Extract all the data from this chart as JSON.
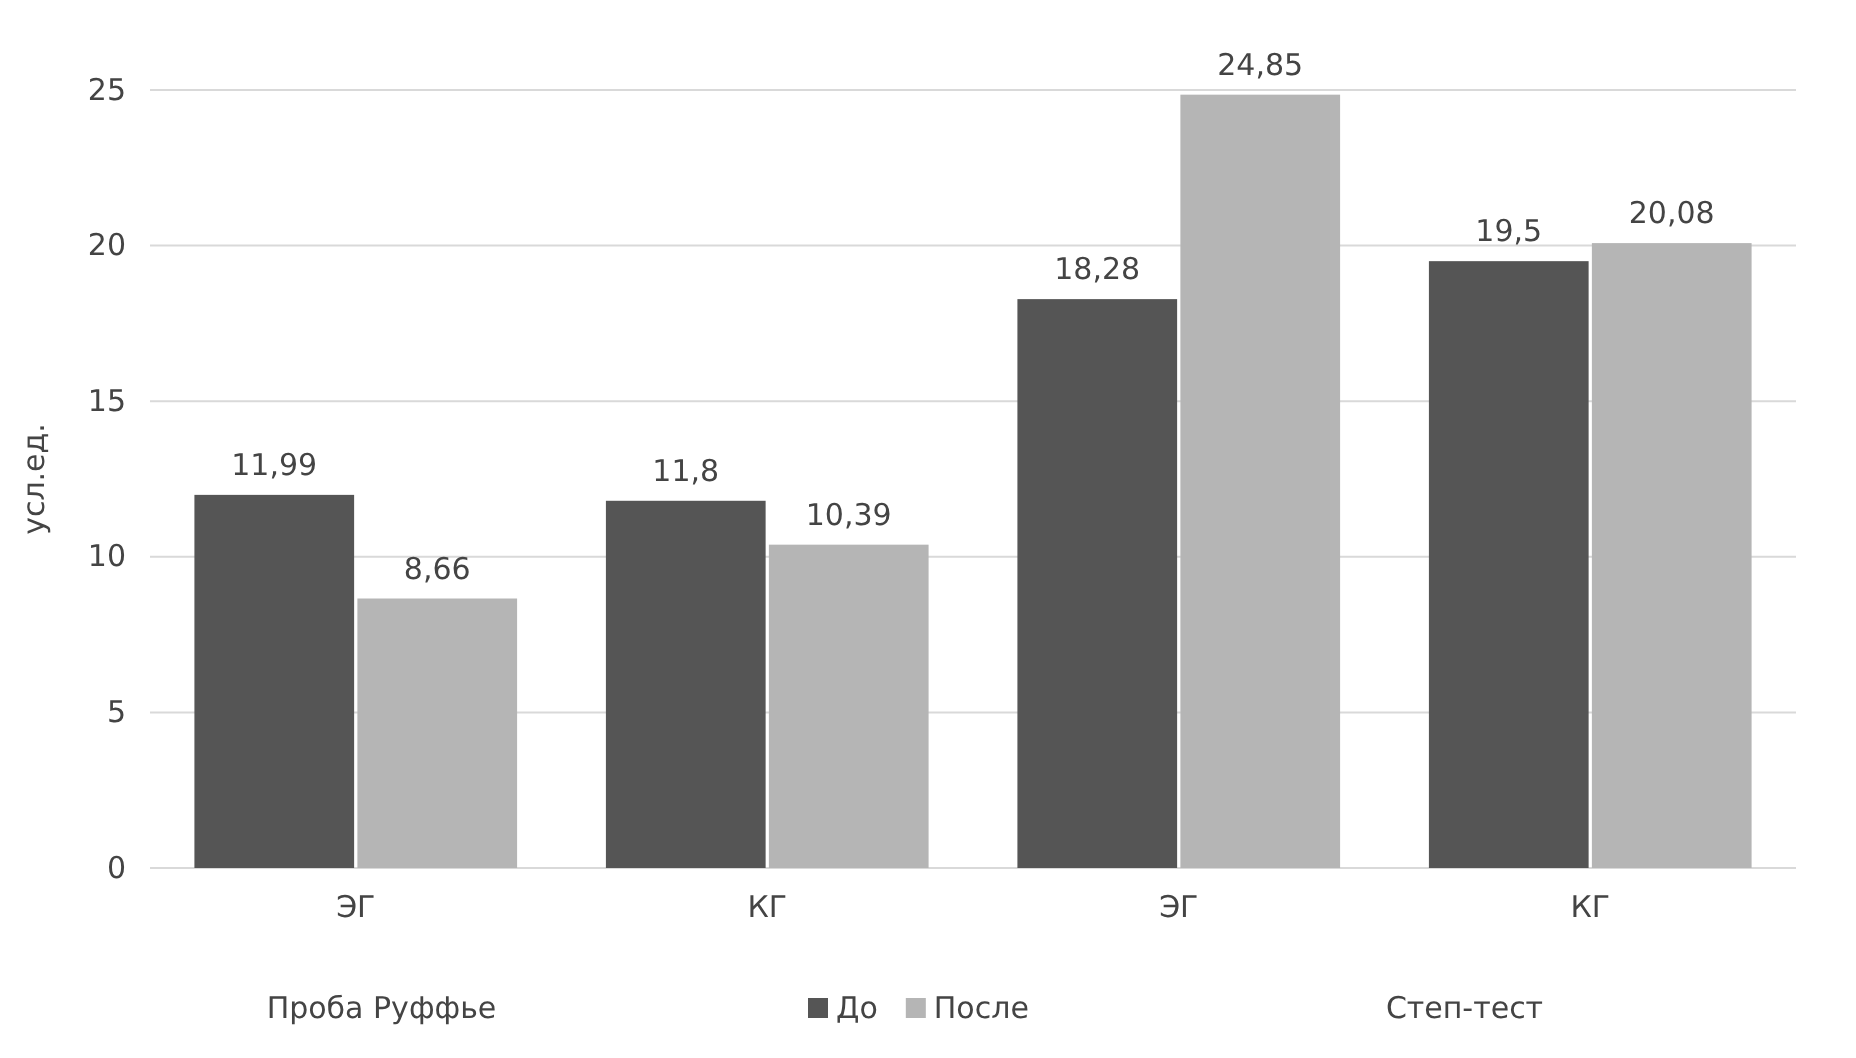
{
  "chart_data": {
    "type": "bar",
    "ylabel": "усл.ед.",
    "categories": [
      "ЭГ",
      "КГ",
      "ЭГ",
      "КГ"
    ],
    "series": [
      {
        "name": "До",
        "color": "#555555",
        "values": [
          11.99,
          11.8,
          18.28,
          19.5
        ],
        "value_labels": [
          "11,99",
          "11,8",
          "18,28",
          "19,5"
        ]
      },
      {
        "name": "После",
        "color": "#b5b5b5",
        "values": [
          8.66,
          10.39,
          24.85,
          20.08
        ],
        "value_labels": [
          "8,66",
          "10,39",
          "24,85",
          "20,08"
        ]
      }
    ],
    "ylim": [
      0,
      25
    ],
    "yticks": [
      0,
      5,
      10,
      15,
      20,
      25
    ],
    "grid": "y",
    "legend": "bottom",
    "annotations": [
      "Проба Руффье",
      "Степ-тест"
    ]
  }
}
